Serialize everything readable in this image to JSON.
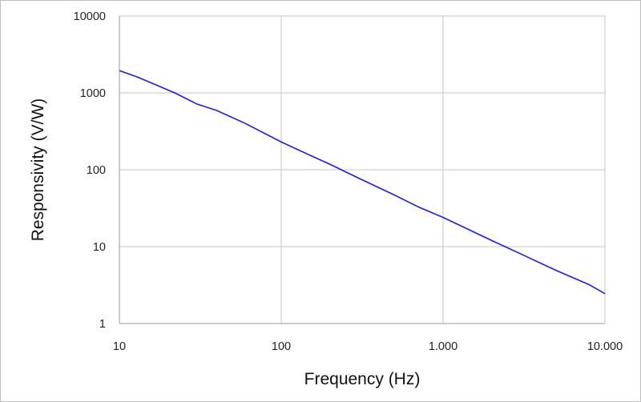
{
  "chart_data": {
    "type": "line",
    "title": "",
    "xlabel": "Frequency (Hz)",
    "ylabel": "Responsivity (V/W)",
    "x_scale": "log",
    "y_scale": "log",
    "xlim": [
      10,
      10000
    ],
    "ylim": [
      1,
      10000
    ],
    "grid": true,
    "x_ticks": [
      10,
      100,
      1000,
      10000
    ],
    "x_tick_labels": [
      "10",
      "100",
      "1.000",
      "10.000"
    ],
    "y_ticks": [
      1,
      10,
      100,
      1000,
      10000
    ],
    "y_tick_labels": [
      "1",
      "10",
      "100",
      "1000",
      "10000"
    ],
    "series": [
      {
        "color": "#1a1aff",
        "x": [
          10,
          13,
          17,
          22,
          30,
          40,
          60,
          100,
          150,
          200,
          300,
          500,
          700,
          1000,
          1500,
          2000,
          3000,
          5000,
          8000,
          10000
        ],
        "y": [
          1950,
          1600,
          1260,
          1000,
          720,
          590,
          400,
          230,
          155,
          118,
          78,
          47,
          33,
          24,
          16,
          12,
          8.1,
          4.9,
          3.2,
          2.45
        ]
      }
    ]
  }
}
